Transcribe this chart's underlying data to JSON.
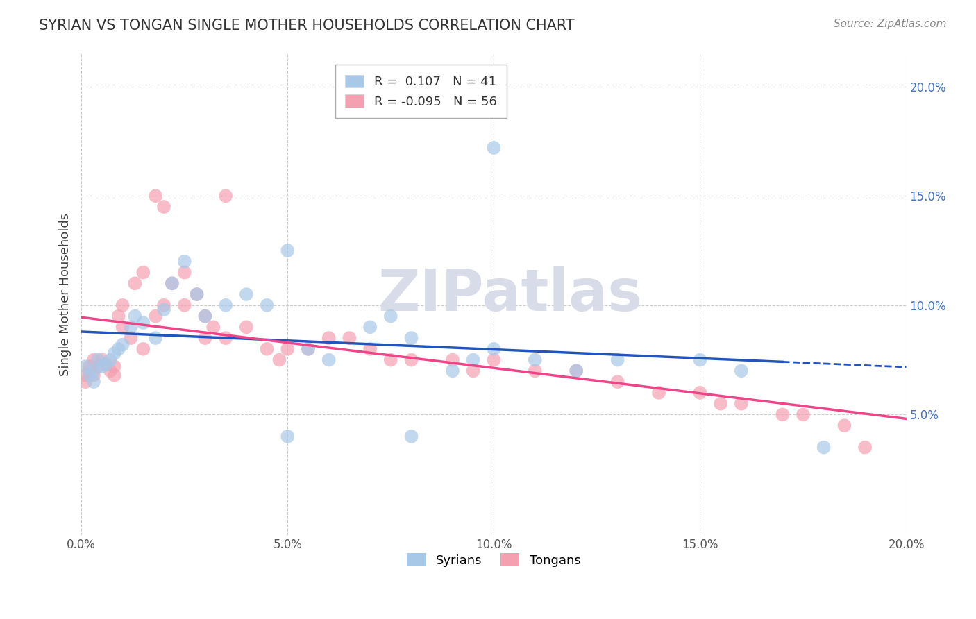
{
  "title": "SYRIAN VS TONGAN SINGLE MOTHER HOUSEHOLDS CORRELATION CHART",
  "source": "Source: ZipAtlas.com",
  "ylabel": "Single Mother Households",
  "xlim": [
    0.0,
    0.2
  ],
  "ylim": [
    -0.005,
    0.215
  ],
  "xtick_vals": [
    0.0,
    0.05,
    0.1,
    0.15,
    0.2
  ],
  "ytick_vals": [
    0.05,
    0.1,
    0.15,
    0.2
  ],
  "syrian_color": "#a8c8e8",
  "tongan_color": "#f4a0b0",
  "syrian_line_color": "#2255bb",
  "tongan_line_color": "#ee4488",
  "r_syrian": 0.107,
  "r_tongan": -0.095,
  "n_syrian": 41,
  "n_tongan": 56,
  "watermark": "ZIPatlas",
  "watermark_color": "#d8dce8",
  "title_color": "#333333",
  "source_color": "#888888",
  "grid_color": "#cccccc",
  "syrians_x": [
    0.001,
    0.002,
    0.003,
    0.003,
    0.004,
    0.005,
    0.006,
    0.007,
    0.008,
    0.009,
    0.01,
    0.012,
    0.013,
    0.015,
    0.018,
    0.02,
    0.022,
    0.025,
    0.028,
    0.03,
    0.035,
    0.04,
    0.045,
    0.05,
    0.055,
    0.06,
    0.07,
    0.075,
    0.08,
    0.09,
    0.095,
    0.1,
    0.11,
    0.12,
    0.13,
    0.15,
    0.16,
    0.18,
    0.1,
    0.05,
    0.08
  ],
  "syrians_y": [
    0.072,
    0.068,
    0.07,
    0.065,
    0.075,
    0.072,
    0.073,
    0.075,
    0.078,
    0.08,
    0.082,
    0.09,
    0.095,
    0.092,
    0.085,
    0.098,
    0.11,
    0.12,
    0.105,
    0.095,
    0.1,
    0.105,
    0.1,
    0.125,
    0.08,
    0.075,
    0.09,
    0.095,
    0.085,
    0.07,
    0.075,
    0.08,
    0.075,
    0.07,
    0.075,
    0.075,
    0.07,
    0.035,
    0.172,
    0.04,
    0.04
  ],
  "tongans_x": [
    0.001,
    0.001,
    0.002,
    0.002,
    0.003,
    0.003,
    0.004,
    0.005,
    0.006,
    0.007,
    0.008,
    0.008,
    0.009,
    0.01,
    0.01,
    0.012,
    0.013,
    0.015,
    0.015,
    0.018,
    0.018,
    0.02,
    0.02,
    0.022,
    0.025,
    0.025,
    0.028,
    0.03,
    0.03,
    0.032,
    0.035,
    0.035,
    0.04,
    0.045,
    0.048,
    0.05,
    0.055,
    0.06,
    0.065,
    0.07,
    0.075,
    0.08,
    0.09,
    0.095,
    0.1,
    0.11,
    0.12,
    0.13,
    0.14,
    0.15,
    0.155,
    0.16,
    0.17,
    0.175,
    0.185,
    0.19
  ],
  "tongans_y": [
    0.065,
    0.068,
    0.07,
    0.072,
    0.068,
    0.075,
    0.072,
    0.075,
    0.073,
    0.07,
    0.068,
    0.072,
    0.095,
    0.09,
    0.1,
    0.085,
    0.11,
    0.08,
    0.115,
    0.095,
    0.15,
    0.1,
    0.145,
    0.11,
    0.1,
    0.115,
    0.105,
    0.085,
    0.095,
    0.09,
    0.15,
    0.085,
    0.09,
    0.08,
    0.075,
    0.08,
    0.08,
    0.085,
    0.085,
    0.08,
    0.075,
    0.075,
    0.075,
    0.07,
    0.075,
    0.07,
    0.07,
    0.065,
    0.06,
    0.06,
    0.055,
    0.055,
    0.05,
    0.05,
    0.045,
    0.035
  ]
}
